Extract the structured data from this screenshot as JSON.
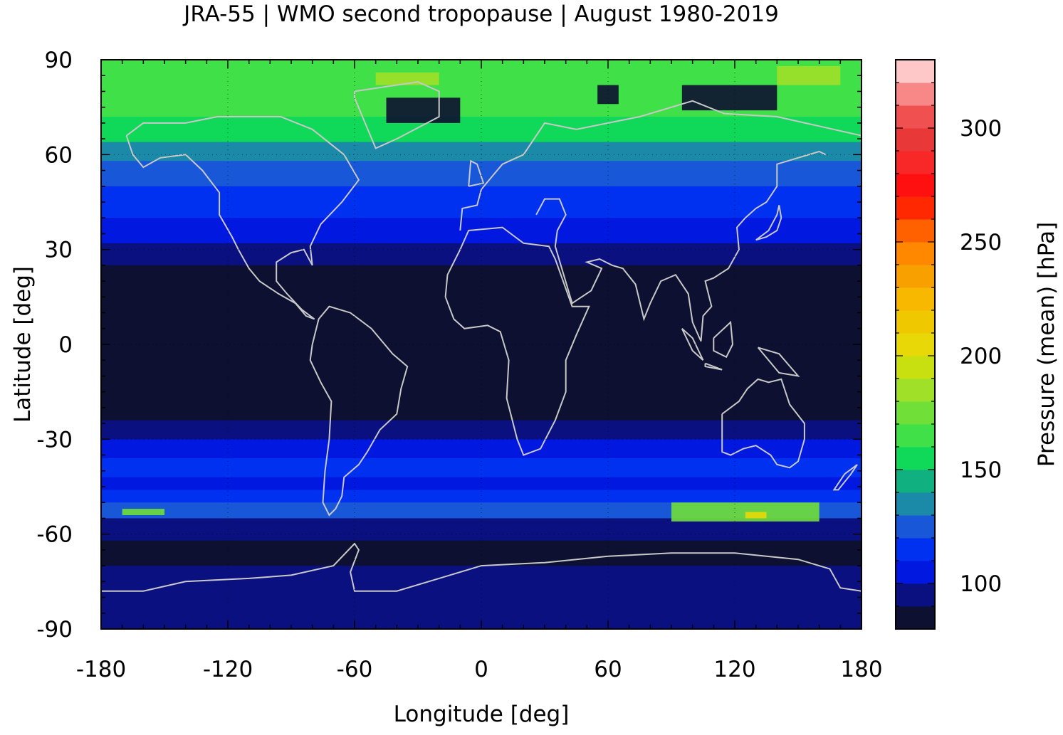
{
  "chart_data": {
    "type": "heatmap",
    "title": "JRA-55 | WMO second tropopause | August 1980-2019",
    "xlabel": "Longitude [deg]",
    "ylabel": "Latitude [deg]",
    "xlim": [
      -180,
      180
    ],
    "ylim": [
      -90,
      90
    ],
    "xticks": [
      -180,
      -120,
      -60,
      0,
      60,
      120,
      180
    ],
    "yticks": [
      90,
      60,
      30,
      0,
      -30,
      -60,
      -90
    ],
    "grid": true,
    "colorbar": {
      "label": "Pressure (mean) [hPa]",
      "range": [
        80,
        320
      ],
      "ticks": [
        100,
        150,
        200,
        250,
        300
      ],
      "levels": [
        {
          "from": 80,
          "to": 90,
          "color": "#0d1030"
        },
        {
          "from": 90,
          "to": 100,
          "color": "#0a1080"
        },
        {
          "from": 100,
          "to": 110,
          "color": "#0018e0"
        },
        {
          "from": 110,
          "to": 120,
          "color": "#0030f0"
        },
        {
          "from": 120,
          "to": 130,
          "color": "#1858d8"
        },
        {
          "from": 130,
          "to": 140,
          "color": "#1a8aa8"
        },
        {
          "from": 140,
          "to": 150,
          "color": "#10b080"
        },
        {
          "from": 150,
          "to": 160,
          "color": "#10d858"
        },
        {
          "from": 160,
          "to": 170,
          "color": "#40e048"
        },
        {
          "from": 170,
          "to": 180,
          "color": "#70e038"
        },
        {
          "from": 180,
          "to": 190,
          "color": "#a0e028"
        },
        {
          "from": 190,
          "to": 200,
          "color": "#c8e010"
        },
        {
          "from": 200,
          "to": 210,
          "color": "#e8d808"
        },
        {
          "from": 210,
          "to": 220,
          "color": "#f0c800"
        },
        {
          "from": 220,
          "to": 230,
          "color": "#f8b800"
        },
        {
          "from": 230,
          "to": 240,
          "color": "#f8a000"
        },
        {
          "from": 240,
          "to": 250,
          "color": "#ff8800"
        },
        {
          "from": 250,
          "to": 260,
          "color": "#ff6000"
        },
        {
          "from": 260,
          "to": 270,
          "color": "#ff2800"
        },
        {
          "from": 270,
          "to": 280,
          "color": "#ff1010"
        },
        {
          "from": 280,
          "to": 290,
          "color": "#f82828"
        },
        {
          "from": 290,
          "to": 300,
          "color": "#e83838"
        },
        {
          "from": 300,
          "to": 310,
          "color": "#f05050"
        },
        {
          "from": 310,
          "to": 320,
          "color": "#f88888"
        },
        {
          "from": 320,
          "to": 330,
          "color": "#ffc8c8"
        }
      ]
    },
    "zonal_profile": [
      {
        "lat": 90,
        "value": 165
      },
      {
        "lat": 80,
        "value": 160
      },
      {
        "lat": 72,
        "value": 150
      },
      {
        "lat": 64,
        "value": 135
      },
      {
        "lat": 58,
        "value": 125
      },
      {
        "lat": 50,
        "value": 110
      },
      {
        "lat": 40,
        "value": 105
      },
      {
        "lat": 32,
        "value": 95
      },
      {
        "lat": 25,
        "value": 88
      },
      {
        "lat": 0,
        "value": 85
      },
      {
        "lat": -18,
        "value": 88
      },
      {
        "lat": -24,
        "value": 95
      },
      {
        "lat": -30,
        "value": 105
      },
      {
        "lat": -36,
        "value": 110
      },
      {
        "lat": -42,
        "value": 105
      },
      {
        "lat": -46,
        "value": 118
      },
      {
        "lat": -50,
        "value": 128
      },
      {
        "lat": -55,
        "value": 95
      },
      {
        "lat": -62,
        "value": 88
      },
      {
        "lat": -70,
        "value": 90
      },
      {
        "lat": -78,
        "value": 95
      },
      {
        "lat": -86,
        "value": 92
      },
      {
        "lat": -90,
        "value": 90
      }
    ],
    "features": [
      {
        "name": "arctic-low-patches",
        "value": 85,
        "regions": [
          [
            -45,
            -10,
            78,
            70
          ],
          [
            55,
            65,
            82,
            76
          ],
          [
            95,
            140,
            82,
            74
          ]
        ]
      },
      {
        "name": "southern-ocean-high",
        "value": 175,
        "regions": [
          [
            90,
            160,
            -50,
            -56
          ],
          [
            -170,
            -150,
            -52,
            -54
          ]
        ]
      },
      {
        "name": "southern-peak",
        "value": 200,
        "regions": [
          [
            125,
            135,
            -53,
            -55
          ]
        ]
      },
      {
        "name": "arctic-high",
        "value": 185,
        "regions": [
          [
            140,
            170,
            88,
            82
          ],
          [
            -50,
            -20,
            86,
            82
          ]
        ]
      }
    ],
    "coastlines": {
      "color": "#c8c8c8",
      "shown": true
    }
  }
}
